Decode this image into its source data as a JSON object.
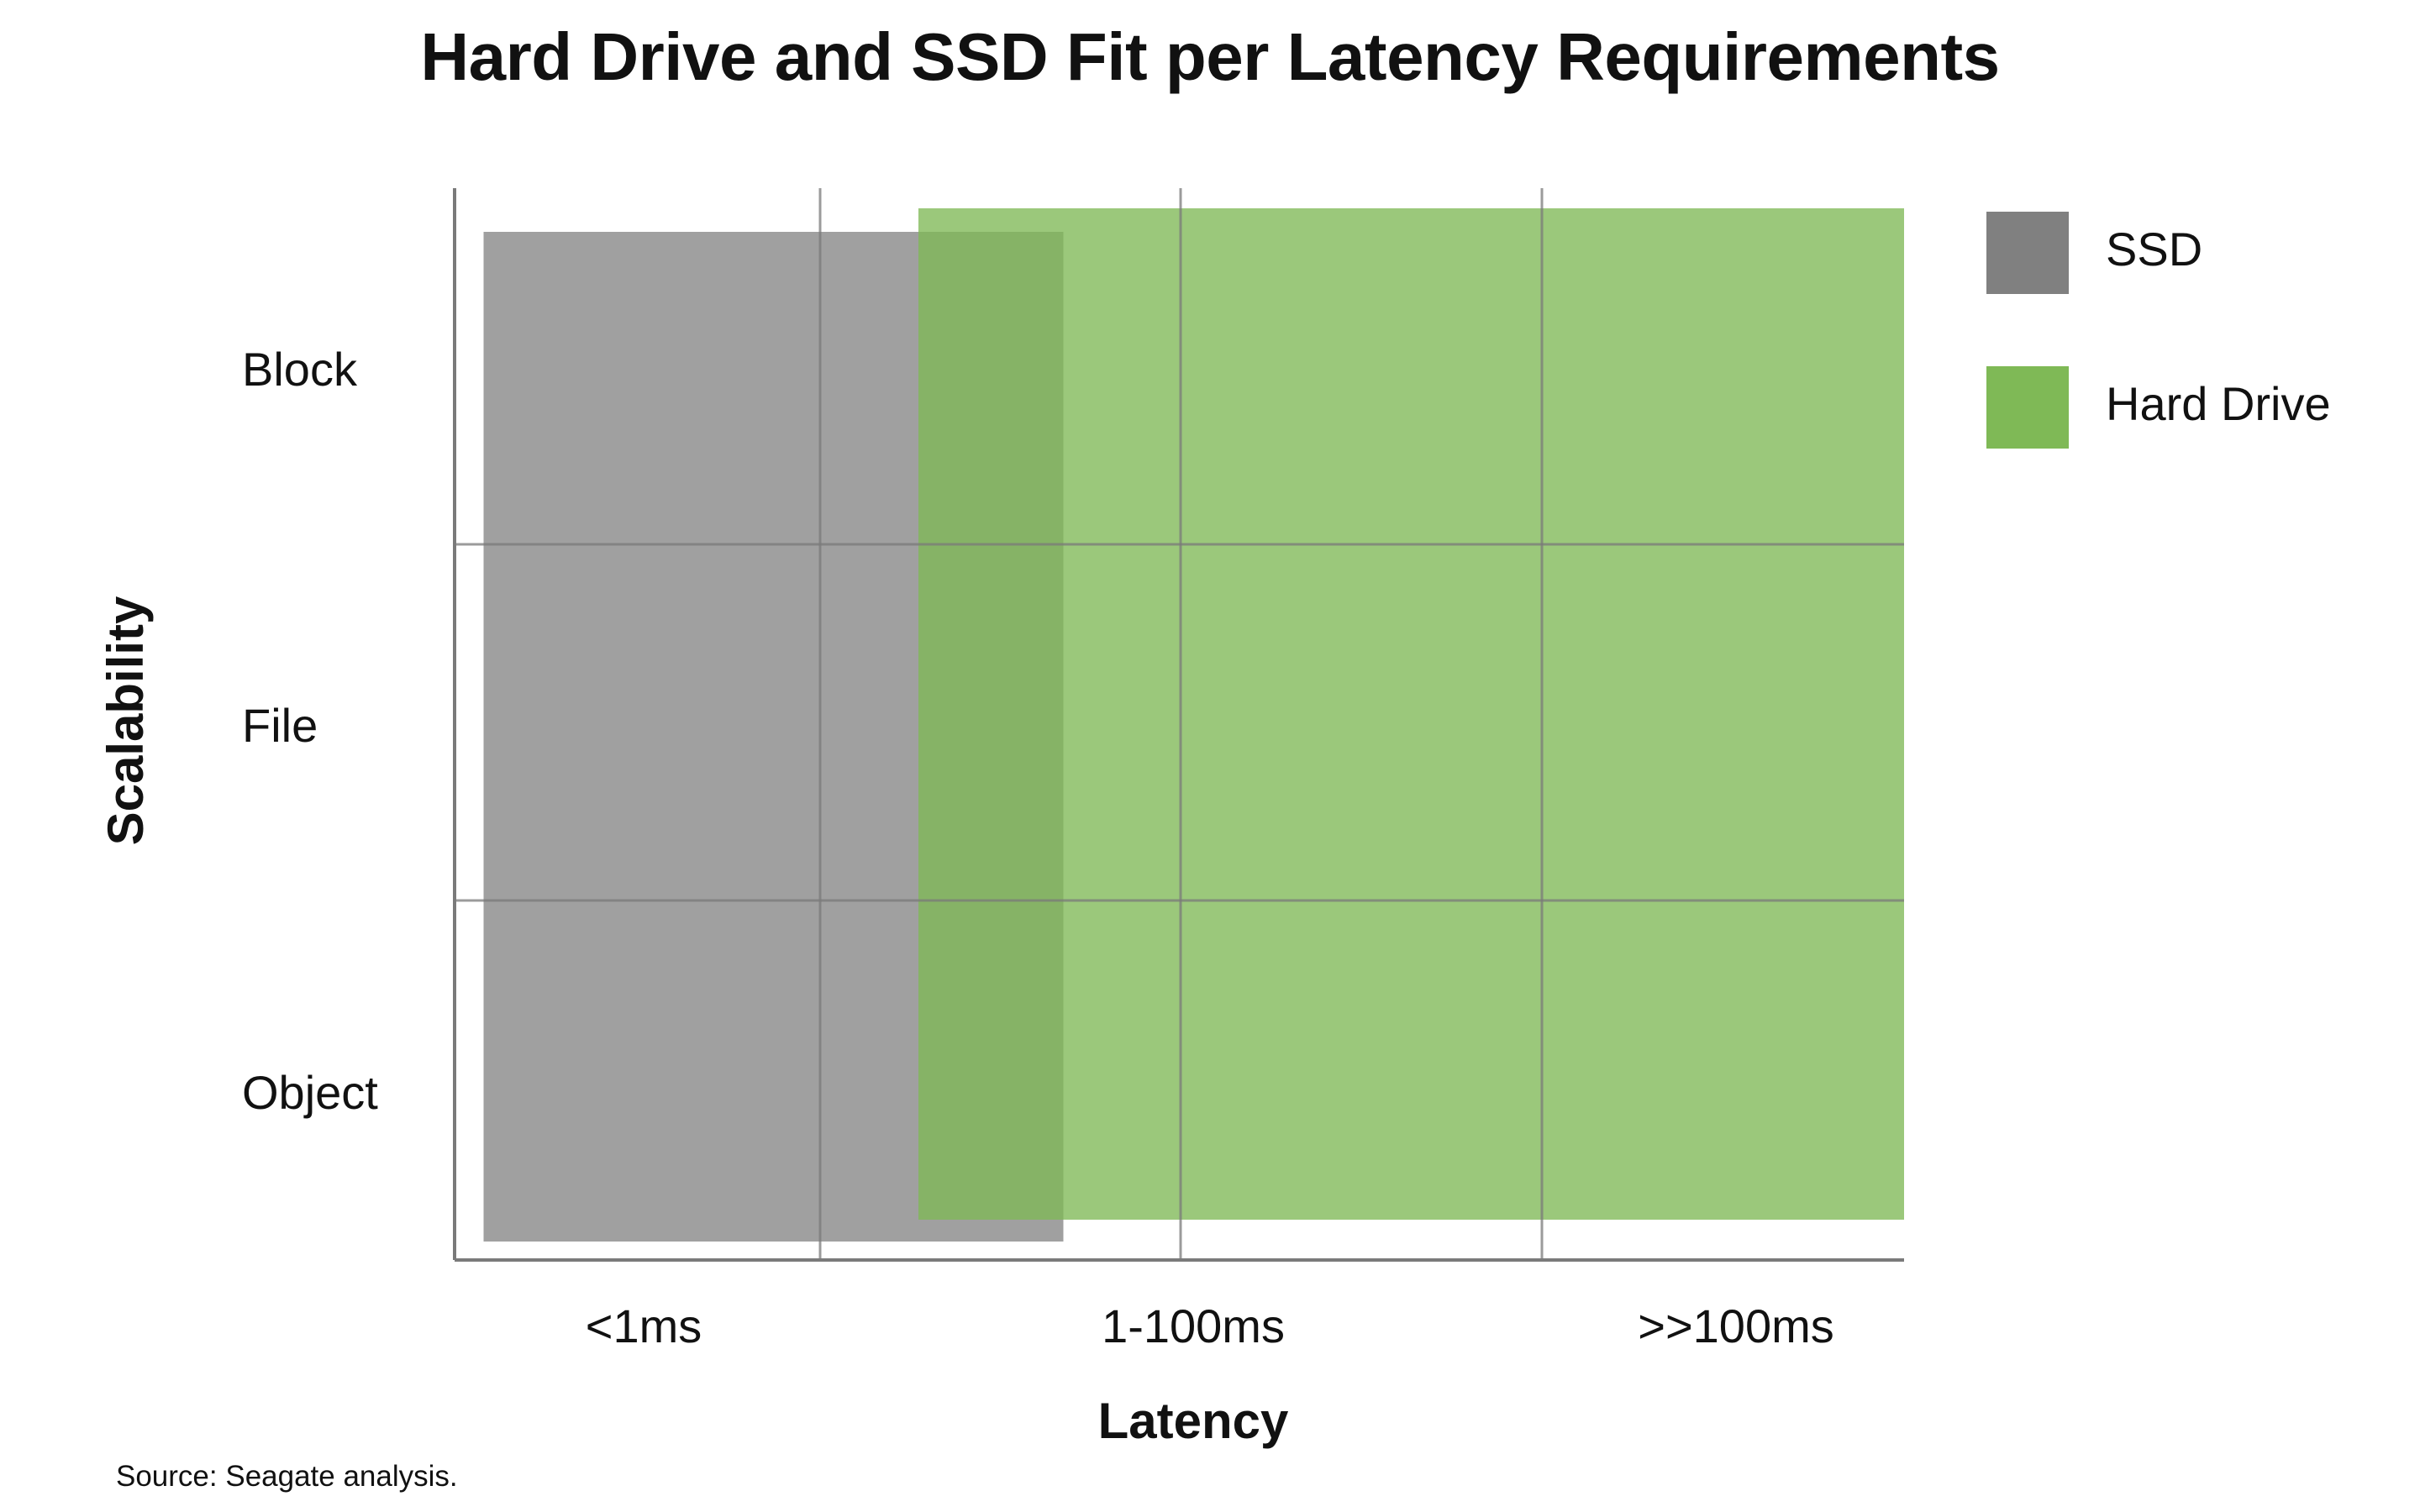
{
  "chart_data": {
    "type": "range_bar",
    "title": "Hard Drive and SSD Fit per Latency Requirements",
    "xlabel": "Latency",
    "ylabel": "Scalability",
    "x_categories": [
      "<1ms",
      "1-100ms",
      ">>100ms"
    ],
    "y_categories": [
      "Block",
      "File",
      "Object"
    ],
    "series": [
      {
        "name": "SSD",
        "color": "#808080",
        "latency_range": [
          "<1ms",
          "1-100ms"
        ],
        "latency_span": [
          0.05,
          1.05
        ],
        "scalability_span": [
          "Block",
          "Object"
        ]
      },
      {
        "name": "Hard Drive",
        "color": "#7fb956",
        "latency_range": [
          "1-100ms",
          ">>100ms"
        ],
        "latency_span": [
          0.8,
          2.5
        ],
        "scalability_span": [
          "Block",
          "Object"
        ]
      }
    ],
    "legend_position": "right",
    "grid": true
  },
  "footnote": "Source: Seagate analysis."
}
